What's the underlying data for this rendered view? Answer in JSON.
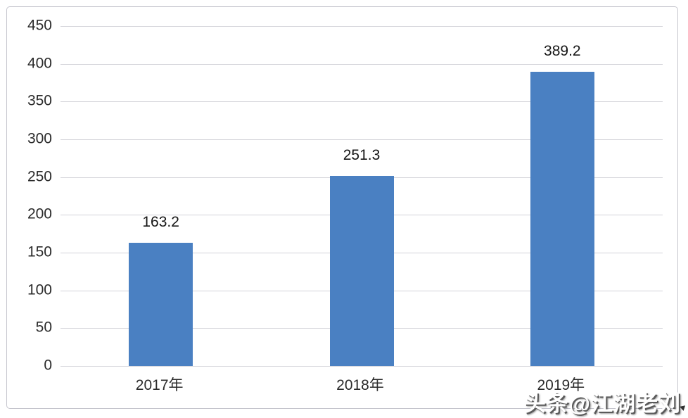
{
  "chart_data": {
    "type": "bar",
    "categories": [
      "2017年",
      "2018年",
      "2019年"
    ],
    "values": [
      163.2,
      251.3,
      389.2
    ],
    "value_labels": [
      "163.2",
      "251.3",
      "389.2"
    ],
    "title": "",
    "xlabel": "",
    "ylabel": "",
    "ylim": [
      0,
      450
    ],
    "yticks": [
      0,
      50,
      100,
      150,
      200,
      250,
      300,
      350,
      400,
      450
    ],
    "grid": true,
    "legend": "none",
    "bar_color": "#4a80c2",
    "gridline_color": "#d3d3d9",
    "frame_border_color": "#c5c5cd",
    "text_color": "#2b2b2b"
  },
  "watermark": {
    "text": "头条@江湖老刘"
  }
}
